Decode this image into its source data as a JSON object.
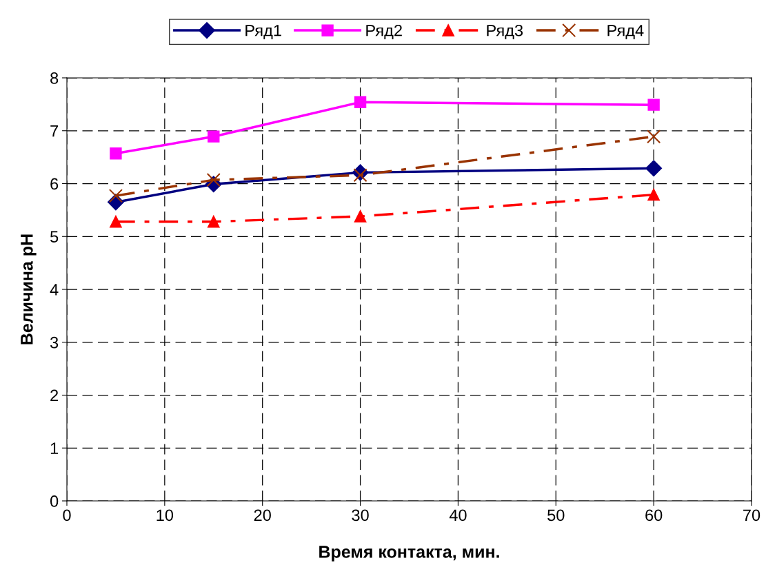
{
  "chart_data": {
    "type": "line",
    "xlabel": "Время контакта, мин.",
    "ylabel": "Величина pH",
    "x": [
      5,
      15,
      30,
      60
    ],
    "series": [
      {
        "name": "Ряд1",
        "color": "#000080",
        "values": [
          5.65,
          5.99,
          6.21,
          6.29
        ],
        "marker": "diamond",
        "line_style": "solid"
      },
      {
        "name": "Ряд2",
        "color": "#ff00ff",
        "values": [
          6.57,
          6.89,
          7.54,
          7.49
        ],
        "marker": "square",
        "line_style": "solid"
      },
      {
        "name": "Ряд3",
        "color": "#ff0000",
        "values": [
          5.28,
          5.28,
          5.38,
          5.79
        ],
        "marker": "triangle",
        "line_style": "dashed"
      },
      {
        "name": "Ряд4",
        "color": "#993300",
        "values": [
          5.77,
          6.07,
          6.16,
          6.89
        ],
        "marker": "cross",
        "line_style": "dashed"
      }
    ],
    "xlim": [
      0,
      70
    ],
    "xticks": [
      0,
      10,
      20,
      30,
      40,
      50,
      60,
      70
    ],
    "ylim": [
      0,
      8
    ],
    "yticks": [
      0,
      1,
      2,
      3,
      4,
      5,
      6,
      7,
      8
    ],
    "grid": true,
    "legend": "top"
  }
}
